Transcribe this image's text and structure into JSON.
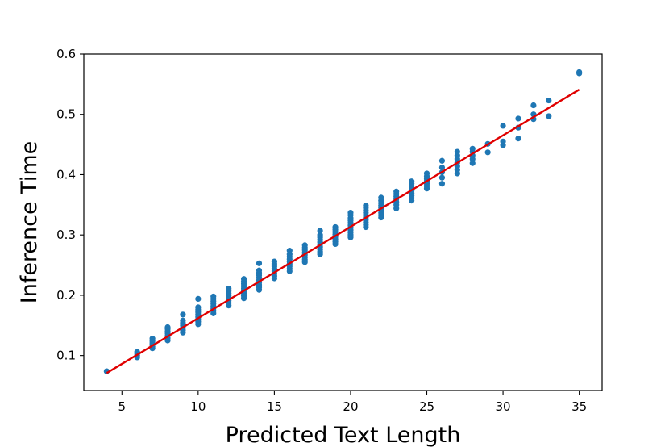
{
  "chart_data": {
    "type": "scatter",
    "title": "",
    "xlabel": "Predicted Text Length",
    "ylabel": "Inference Time",
    "xlim": [
      2.5,
      36.5
    ],
    "ylim": [
      0.042,
      0.6
    ],
    "xticks": [
      5,
      10,
      15,
      20,
      25,
      30,
      35
    ],
    "yticks": [
      0.1,
      0.2,
      0.3,
      0.4,
      0.5,
      0.6
    ],
    "grid": false,
    "legend": "none",
    "colors": {
      "points": "#1f77b4",
      "fit": "#e00000",
      "axes": "#000000"
    },
    "series": [
      {
        "name": "",
        "kind": "points",
        "points": [
          [
            4,
            0.074
          ],
          [
            6,
            0.097
          ],
          [
            6,
            0.1
          ],
          [
            6,
            0.103
          ],
          [
            6,
            0.106
          ],
          [
            7,
            0.112
          ],
          [
            7,
            0.115
          ],
          [
            7,
            0.118
          ],
          [
            7,
            0.121
          ],
          [
            7,
            0.124
          ],
          [
            7,
            0.128
          ],
          [
            8,
            0.125
          ],
          [
            8,
            0.129
          ],
          [
            8,
            0.133
          ],
          [
            8,
            0.137
          ],
          [
            8,
            0.14
          ],
          [
            8,
            0.144
          ],
          [
            8,
            0.147
          ],
          [
            9,
            0.138
          ],
          [
            9,
            0.142
          ],
          [
            9,
            0.146
          ],
          [
            9,
            0.15
          ],
          [
            9,
            0.154
          ],
          [
            9,
            0.158
          ],
          [
            9,
            0.168
          ],
          [
            10,
            0.152
          ],
          [
            10,
            0.156
          ],
          [
            10,
            0.16
          ],
          [
            10,
            0.164
          ],
          [
            10,
            0.168
          ],
          [
            10,
            0.172
          ],
          [
            10,
            0.176
          ],
          [
            10,
            0.18
          ],
          [
            10,
            0.194
          ],
          [
            11,
            0.17
          ],
          [
            11,
            0.174
          ],
          [
            11,
            0.178
          ],
          [
            11,
            0.182
          ],
          [
            11,
            0.186
          ],
          [
            11,
            0.19
          ],
          [
            11,
            0.194
          ],
          [
            11,
            0.198
          ],
          [
            12,
            0.183
          ],
          [
            12,
            0.187
          ],
          [
            12,
            0.191
          ],
          [
            12,
            0.195
          ],
          [
            12,
            0.199
          ],
          [
            12,
            0.203
          ],
          [
            12,
            0.207
          ],
          [
            12,
            0.211
          ],
          [
            13,
            0.195
          ],
          [
            13,
            0.199
          ],
          [
            13,
            0.203
          ],
          [
            13,
            0.207
          ],
          [
            13,
            0.211
          ],
          [
            13,
            0.215
          ],
          [
            13,
            0.219
          ],
          [
            13,
            0.223
          ],
          [
            13,
            0.227
          ],
          [
            14,
            0.209
          ],
          [
            14,
            0.213
          ],
          [
            14,
            0.217
          ],
          [
            14,
            0.221
          ],
          [
            14,
            0.225
          ],
          [
            14,
            0.229
          ],
          [
            14,
            0.233
          ],
          [
            14,
            0.237
          ],
          [
            14,
            0.241
          ],
          [
            14,
            0.253
          ],
          [
            15,
            0.228
          ],
          [
            15,
            0.232
          ],
          [
            15,
            0.236
          ],
          [
            15,
            0.24
          ],
          [
            15,
            0.244
          ],
          [
            15,
            0.248
          ],
          [
            15,
            0.252
          ],
          [
            15,
            0.256
          ],
          [
            16,
            0.24
          ],
          [
            16,
            0.244
          ],
          [
            16,
            0.248
          ],
          [
            16,
            0.252
          ],
          [
            16,
            0.256
          ],
          [
            16,
            0.26
          ],
          [
            16,
            0.264
          ],
          [
            16,
            0.268
          ],
          [
            16,
            0.274
          ],
          [
            17,
            0.255
          ],
          [
            17,
            0.259
          ],
          [
            17,
            0.263
          ],
          [
            17,
            0.267
          ],
          [
            17,
            0.271
          ],
          [
            17,
            0.275
          ],
          [
            17,
            0.279
          ],
          [
            17,
            0.283
          ],
          [
            18,
            0.268
          ],
          [
            18,
            0.272
          ],
          [
            18,
            0.276
          ],
          [
            18,
            0.28
          ],
          [
            18,
            0.284
          ],
          [
            18,
            0.288
          ],
          [
            18,
            0.292
          ],
          [
            18,
            0.296
          ],
          [
            18,
            0.3
          ],
          [
            18,
            0.307
          ],
          [
            19,
            0.285
          ],
          [
            19,
            0.289
          ],
          [
            19,
            0.293
          ],
          [
            19,
            0.297
          ],
          [
            19,
            0.301
          ],
          [
            19,
            0.305
          ],
          [
            19,
            0.309
          ],
          [
            19,
            0.313
          ],
          [
            20,
            0.296
          ],
          [
            20,
            0.3
          ],
          [
            20,
            0.304
          ],
          [
            20,
            0.308
          ],
          [
            20,
            0.312
          ],
          [
            20,
            0.316
          ],
          [
            20,
            0.32
          ],
          [
            20,
            0.324
          ],
          [
            20,
            0.328
          ],
          [
            20,
            0.333
          ],
          [
            20,
            0.337
          ],
          [
            21,
            0.313
          ],
          [
            21,
            0.317
          ],
          [
            21,
            0.321
          ],
          [
            21,
            0.325
          ],
          [
            21,
            0.329
          ],
          [
            21,
            0.333
          ],
          [
            21,
            0.337
          ],
          [
            21,
            0.341
          ],
          [
            21,
            0.345
          ],
          [
            21,
            0.349
          ],
          [
            22,
            0.329
          ],
          [
            22,
            0.333
          ],
          [
            22,
            0.337
          ],
          [
            22,
            0.341
          ],
          [
            22,
            0.345
          ],
          [
            22,
            0.349
          ],
          [
            22,
            0.353
          ],
          [
            22,
            0.357
          ],
          [
            22,
            0.362
          ],
          [
            23,
            0.344
          ],
          [
            23,
            0.35
          ],
          [
            23,
            0.355
          ],
          [
            23,
            0.36
          ],
          [
            23,
            0.364
          ],
          [
            23,
            0.368
          ],
          [
            23,
            0.372
          ],
          [
            24,
            0.357
          ],
          [
            24,
            0.361
          ],
          [
            24,
            0.365
          ],
          [
            24,
            0.369
          ],
          [
            24,
            0.373
          ],
          [
            24,
            0.377
          ],
          [
            24,
            0.381
          ],
          [
            24,
            0.385
          ],
          [
            24,
            0.389
          ],
          [
            25,
            0.377
          ],
          [
            25,
            0.381
          ],
          [
            25,
            0.385
          ],
          [
            25,
            0.389
          ],
          [
            25,
            0.393
          ],
          [
            25,
            0.397
          ],
          [
            25,
            0.402
          ],
          [
            26,
            0.385
          ],
          [
            26,
            0.395
          ],
          [
            26,
            0.404
          ],
          [
            26,
            0.412
          ],
          [
            26,
            0.423
          ],
          [
            27,
            0.402
          ],
          [
            27,
            0.408
          ],
          [
            27,
            0.414
          ],
          [
            27,
            0.42
          ],
          [
            27,
            0.426
          ],
          [
            27,
            0.432
          ],
          [
            27,
            0.438
          ],
          [
            28,
            0.419
          ],
          [
            28,
            0.426
          ],
          [
            28,
            0.432
          ],
          [
            28,
            0.438
          ],
          [
            28,
            0.443
          ],
          [
            29,
            0.437
          ],
          [
            29,
            0.451
          ],
          [
            30,
            0.449
          ],
          [
            30,
            0.455
          ],
          [
            30,
            0.481
          ],
          [
            31,
            0.46
          ],
          [
            31,
            0.478
          ],
          [
            31,
            0.493
          ],
          [
            32,
            0.492
          ],
          [
            32,
            0.5
          ],
          [
            32,
            0.515
          ],
          [
            33,
            0.497
          ],
          [
            33,
            0.523
          ],
          [
            35,
            0.568
          ],
          [
            35,
            0.57
          ]
        ]
      },
      {
        "name": "",
        "kind": "line",
        "points": [
          [
            4,
            0.071
          ],
          [
            35,
            0.541
          ]
        ]
      }
    ]
  }
}
